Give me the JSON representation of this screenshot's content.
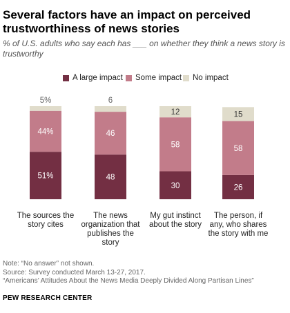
{
  "title": "Several factors have an impact on perceived trustworthiness of news stories",
  "subtitle": "% of U.S. adults who say each has ___ on whether they think a news story is trustworthy",
  "colors": {
    "large": "#732f43",
    "some": "#c27c8a",
    "none": "#e0dccb",
    "label_light": "#ffffff",
    "label_dark": "#333333",
    "top_label": "#666666"
  },
  "chart_data": {
    "type": "bar",
    "stacked": true,
    "categories": [
      "The sources the story cites",
      "The news organization that publishes the story",
      "My gut instinct about the story",
      "The person, if any, who shares the story with me"
    ],
    "series": [
      {
        "name": "A large impact",
        "values": [
          51,
          48,
          30,
          26
        ],
        "labels": [
          "51%",
          "48",
          "30",
          "26"
        ]
      },
      {
        "name": "Some impact",
        "values": [
          44,
          46,
          58,
          58
        ],
        "labels": [
          "44%",
          "46",
          "58",
          "58"
        ]
      },
      {
        "name": "No impact",
        "values": [
          5,
          6,
          12,
          15
        ],
        "labels": [
          "5%",
          "6",
          "12",
          "15"
        ]
      }
    ],
    "ylim": [
      0,
      100
    ],
    "grid": false,
    "legend_position": "top"
  },
  "category_lines": [
    [
      "The sources the",
      "story cites"
    ],
    [
      "The news",
      "organization that",
      "publishes the",
      "story"
    ],
    [
      "My gut instinct",
      "about the story"
    ],
    [
      "The person, if",
      "any, who shares",
      "the story with me"
    ]
  ],
  "notes": [
    "Note: “No answer” not shown.",
    "Source: Survey conducted March 13-27, 2017.",
    "“Americans’ Attitudes About the News Media Deeply Divided Along Partisan Lines”"
  ],
  "source_org": "PEW RESEARCH CENTER"
}
